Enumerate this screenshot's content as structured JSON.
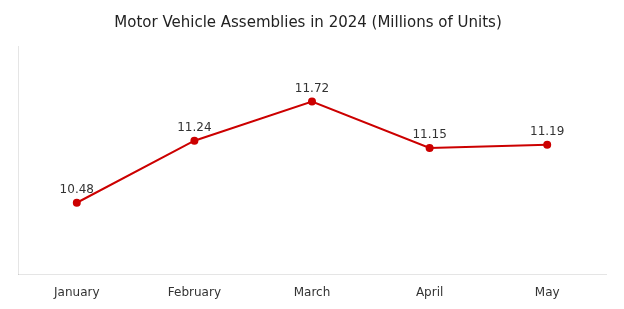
{
  "chart_data": {
    "type": "line",
    "title": "Motor Vehicle Assemblies in 2024 (Millions of Units)",
    "categories": [
      "January",
      "February",
      "March",
      "April",
      "May"
    ],
    "values": [
      10.48,
      11.24,
      11.72,
      11.15,
      11.19
    ],
    "color": "#cc0000",
    "ylim": [
      9.6,
      12.4
    ],
    "grid": false,
    "data_labels": true,
    "tick_labels": "x"
  }
}
